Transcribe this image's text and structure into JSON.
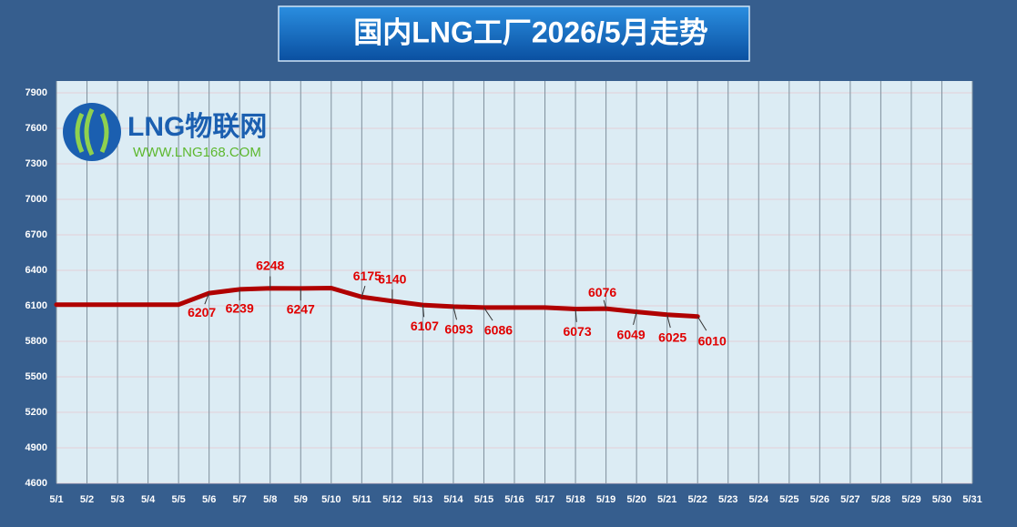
{
  "chart_data": {
    "type": "line",
    "title": "国内LNG工厂2026/5月走势",
    "logo": {
      "name": "LNG物联网",
      "url": "WWW.LNG168.COM"
    },
    "categories": [
      "5/1",
      "5/2",
      "5/3",
      "5/4",
      "5/5",
      "5/6",
      "5/7",
      "5/8",
      "5/9",
      "5/10",
      "5/11",
      "5/12",
      "5/13",
      "5/14",
      "5/15",
      "5/16",
      "5/17",
      "5/18",
      "5/19",
      "5/20",
      "5/21",
      "5/22",
      "5/23",
      "5/24",
      "5/25",
      "5/26",
      "5/27",
      "5/28",
      "5/29",
      "5/30",
      "5/31"
    ],
    "series": [
      {
        "name": "LNG工厂",
        "color": "#b00000",
        "values": [
          6110,
          6110,
          6110,
          6110,
          6110,
          6207,
          6239,
          6248,
          6247,
          6250,
          6175,
          6140,
          6107,
          6093,
          6086,
          6086,
          6086,
          6073,
          6076,
          6049,
          6025,
          6010,
          null,
          null,
          null,
          null,
          null,
          null,
          null,
          null,
          null
        ],
        "value_labels": [
          null,
          null,
          null,
          null,
          null,
          6207,
          6239,
          6248,
          6247,
          null,
          6175,
          6140,
          6107,
          6093,
          6086,
          null,
          null,
          6073,
          6076,
          6049,
          6025,
          6010,
          null,
          null,
          null,
          null,
          null,
          null,
          null,
          null,
          null
        ]
      }
    ],
    "ylim": [
      4600,
      8000
    ],
    "yticks": [
      4600,
      4900,
      5200,
      5500,
      5800,
      6100,
      6400,
      6700,
      7000,
      7300,
      7600,
      7900
    ],
    "grid": true
  }
}
